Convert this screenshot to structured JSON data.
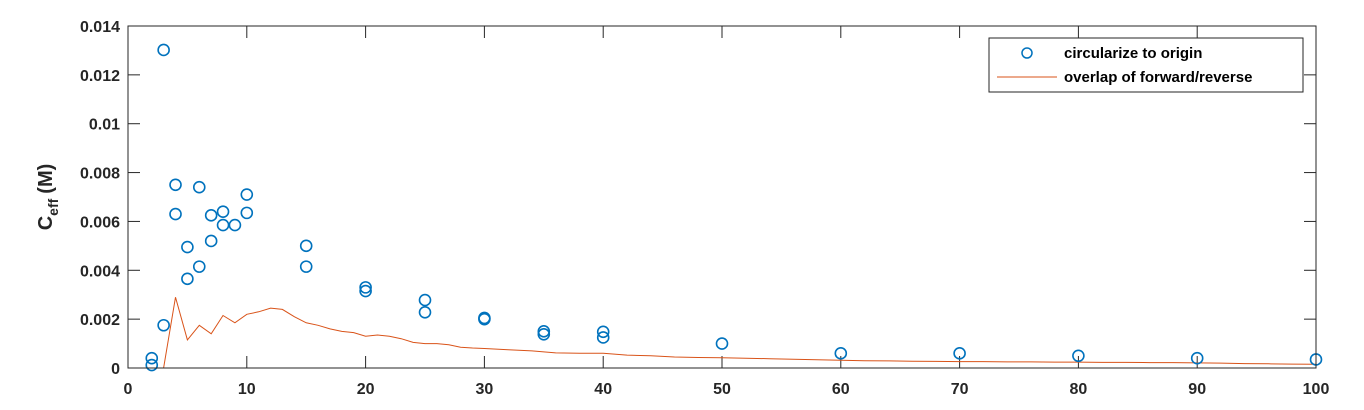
{
  "chart_data": {
    "type": "scatter",
    "xlabel": "",
    "ylabel": "C",
    "ylabel_sub": "eff",
    "ylabel_unit": "(M)",
    "xlim": [
      0,
      100
    ],
    "ylim": [
      0,
      0.014
    ],
    "xticks": [
      "0",
      "10",
      "20",
      "30",
      "40",
      "50",
      "60",
      "70",
      "80",
      "90",
      "100"
    ],
    "yticks": [
      "0",
      "0.002",
      "0.004",
      "0.006",
      "0.008",
      "0.01",
      "0.012",
      "0.014"
    ],
    "legend_position": "top-right",
    "series": [
      {
        "name": "circularize to origin",
        "kind": "scatter",
        "marker": "circle",
        "color": "#0072BD",
        "x": [
          2,
          2,
          3,
          3,
          4,
          4,
          5,
          5,
          6,
          6,
          7,
          7,
          8,
          8,
          9,
          10,
          10,
          15,
          15,
          20,
          20,
          25,
          25,
          30,
          30,
          35,
          35,
          40,
          40,
          50,
          60,
          70,
          80,
          90,
          100
        ],
        "y": [
          0.0004,
          0.00012,
          0.01302,
          0.00175,
          0.0075,
          0.0063,
          0.00495,
          0.00365,
          0.0074,
          0.00415,
          0.00625,
          0.0052,
          0.0064,
          0.00585,
          0.00585,
          0.0071,
          0.00635,
          0.005,
          0.00415,
          0.0033,
          0.00315,
          0.00278,
          0.00228,
          0.00205,
          0.002,
          0.0015,
          0.00138,
          0.00148,
          0.00125,
          0.001,
          0.0006,
          0.0006,
          0.0005,
          0.0004,
          0.00035
        ]
      },
      {
        "name": "overlap of forward/reverse",
        "kind": "line",
        "color": "#D95319",
        "x": [
          2,
          3,
          4,
          5,
          6,
          7,
          8,
          9,
          10,
          11,
          12,
          13,
          14,
          15,
          16,
          17,
          18,
          19,
          20,
          21,
          22,
          23,
          24,
          25,
          26,
          27,
          28,
          29,
          30,
          32,
          34,
          36,
          38,
          40,
          42,
          44,
          46,
          48,
          50,
          52,
          54,
          56,
          58,
          60,
          62,
          64,
          66,
          68,
          70,
          72,
          74,
          76,
          78,
          80,
          82,
          84,
          86,
          88,
          90,
          92,
          94,
          96,
          98,
          100
        ],
        "y": [
          0,
          0,
          0.0029,
          0.00115,
          0.00175,
          0.0014,
          0.00215,
          0.00185,
          0.0022,
          0.0023,
          0.00245,
          0.0024,
          0.0021,
          0.00185,
          0.00175,
          0.0016,
          0.0015,
          0.00145,
          0.0013,
          0.00135,
          0.0013,
          0.0012,
          0.00105,
          0.001,
          0.001,
          0.00095,
          0.00085,
          0.00082,
          0.0008,
          0.00075,
          0.0007,
          0.00062,
          0.0006,
          0.0006,
          0.00053,
          0.0005,
          0.00045,
          0.00043,
          0.00042,
          0.0004,
          0.00038,
          0.00036,
          0.00034,
          0.00032,
          0.0003,
          0.00029,
          0.00028,
          0.00027,
          0.00026,
          0.00026,
          0.00025,
          0.00025,
          0.00024,
          0.00024,
          0.00023,
          0.00023,
          0.00022,
          0.00022,
          0.00021,
          0.0002,
          0.00018,
          0.00017,
          0.00016,
          0.00015
        ]
      }
    ]
  }
}
